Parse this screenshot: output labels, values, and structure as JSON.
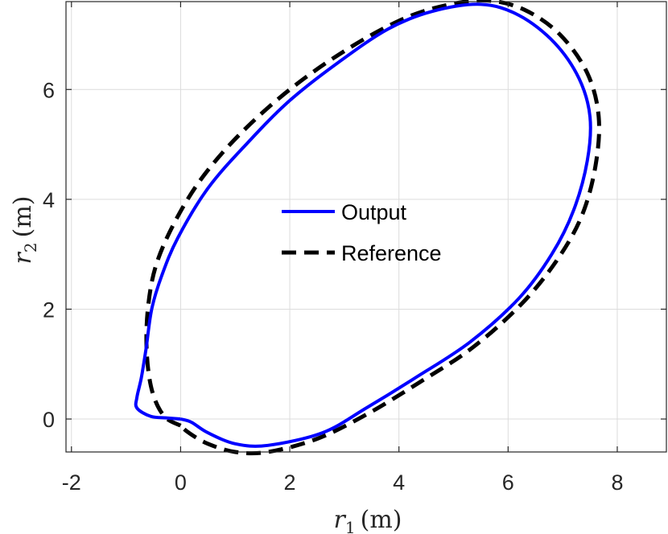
{
  "chart_data": {
    "type": "line",
    "title": "",
    "xlabel": {
      "symbol": "r",
      "subscript": "1",
      "unit": "(m)"
    },
    "ylabel": {
      "symbol": "r",
      "subscript": "2",
      "unit": "(m)"
    },
    "xlim": [
      -2.1,
      8.9
    ],
    "ylim": [
      -0.6,
      7.6
    ],
    "xticks": [
      -2,
      0,
      2,
      4,
      6,
      8
    ],
    "yticks": [
      0,
      2,
      4,
      6
    ],
    "grid": true,
    "legend_position": "center",
    "series": [
      {
        "name": "Output",
        "color": "#0000ff",
        "style": "solid",
        "points": [
          [
            0.0,
            0.0
          ],
          [
            -0.25,
            0.02
          ],
          [
            -0.55,
            0.05
          ],
          [
            -0.8,
            0.2
          ],
          [
            -0.8,
            0.4
          ],
          [
            -0.72,
            0.75
          ],
          [
            -0.63,
            1.3
          ],
          [
            -0.53,
            2.0
          ],
          [
            -0.35,
            2.6
          ],
          [
            -0.05,
            3.3
          ],
          [
            0.5,
            4.2
          ],
          [
            1.2,
            5.0
          ],
          [
            2.0,
            5.8
          ],
          [
            2.9,
            6.5
          ],
          [
            3.8,
            7.1
          ],
          [
            4.6,
            7.42
          ],
          [
            5.5,
            7.55
          ],
          [
            6.2,
            7.35
          ],
          [
            6.85,
            6.85
          ],
          [
            7.3,
            6.2
          ],
          [
            7.5,
            5.5
          ],
          [
            7.45,
            4.7
          ],
          [
            7.2,
            3.8
          ],
          [
            6.8,
            3.0
          ],
          [
            6.2,
            2.2
          ],
          [
            5.3,
            1.4
          ],
          [
            4.3,
            0.75
          ],
          [
            3.4,
            0.2
          ],
          [
            2.6,
            -0.25
          ],
          [
            1.6,
            -0.48
          ],
          [
            1.0,
            -0.45
          ],
          [
            0.5,
            -0.25
          ],
          [
            0.2,
            -0.06
          ],
          [
            0.0,
            0.0
          ]
        ]
      },
      {
        "name": "Reference",
        "color": "#000000",
        "style": "dashed",
        "points": [
          [
            0.0,
            -0.12
          ],
          [
            -0.3,
            0.05
          ],
          [
            -0.52,
            0.5
          ],
          [
            -0.62,
            1.2
          ],
          [
            -0.6,
            2.0
          ],
          [
            -0.45,
            2.8
          ],
          [
            -0.1,
            3.6
          ],
          [
            0.4,
            4.4
          ],
          [
            1.1,
            5.2
          ],
          [
            2.0,
            6.0
          ],
          [
            3.0,
            6.7
          ],
          [
            4.0,
            7.25
          ],
          [
            4.8,
            7.52
          ],
          [
            5.6,
            7.62
          ],
          [
            6.3,
            7.45
          ],
          [
            6.95,
            7.0
          ],
          [
            7.45,
            6.3
          ],
          [
            7.66,
            5.5
          ],
          [
            7.6,
            4.6
          ],
          [
            7.35,
            3.7
          ],
          [
            6.9,
            2.9
          ],
          [
            6.25,
            2.1
          ],
          [
            5.35,
            1.3
          ],
          [
            4.35,
            0.65
          ],
          [
            3.4,
            0.08
          ],
          [
            2.5,
            -0.36
          ],
          [
            1.6,
            -0.6
          ],
          [
            1.0,
            -0.6
          ],
          [
            0.5,
            -0.45
          ],
          [
            0.15,
            -0.25
          ],
          [
            0.0,
            -0.12
          ]
        ]
      }
    ]
  }
}
